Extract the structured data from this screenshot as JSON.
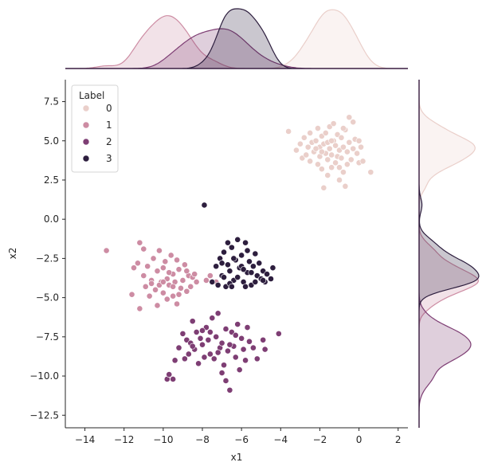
{
  "chart_data": {
    "type": "scatter",
    "subtype": "jointplot",
    "xlabel": "x1",
    "ylabel": "x2",
    "xlim": [
      -15,
      2.5
    ],
    "ylim": [
      -13.3,
      8.9
    ],
    "xticks": [
      "−14",
      "−12",
      "−10",
      "−8",
      "−6",
      "−4",
      "−2",
      "0",
      "2"
    ],
    "yticks": [
      "−12.5",
      "−10.0",
      "−7.5",
      "−5.0",
      "−2.5",
      "0.0",
      "2.5",
      "5.0",
      "7.5"
    ],
    "grid": false,
    "legend": {
      "title": "Label",
      "position": "top-left",
      "entries": [
        "0",
        "1",
        "2",
        "3"
      ]
    },
    "marginal": "kde",
    "series": [
      {
        "name": "0",
        "color": "#eacfca",
        "points": [
          [
            -3.6,
            5.6
          ],
          [
            -3.2,
            4.4
          ],
          [
            -3.0,
            4.8
          ],
          [
            -2.9,
            3.9
          ],
          [
            -2.8,
            5.2
          ],
          [
            -2.7,
            4.1
          ],
          [
            -2.6,
            4.6
          ],
          [
            -2.5,
            5.5
          ],
          [
            -2.5,
            3.7
          ],
          [
            -2.4,
            4.9
          ],
          [
            -2.3,
            4.3
          ],
          [
            -2.2,
            5.0
          ],
          [
            -2.1,
            3.5
          ],
          [
            -2.1,
            5.8
          ],
          [
            -2.0,
            4.6
          ],
          [
            -2.0,
            4.0
          ],
          [
            -1.9,
            5.3
          ],
          [
            -1.9,
            3.2
          ],
          [
            -1.8,
            2.0
          ],
          [
            -1.8,
            4.8
          ],
          [
            -1.7,
            4.2
          ],
          [
            -1.7,
            5.5
          ],
          [
            -1.6,
            3.8
          ],
          [
            -1.6,
            2.8
          ],
          [
            -1.5,
            4.5
          ],
          [
            -1.5,
            5.9
          ],
          [
            -1.4,
            4.1
          ],
          [
            -1.4,
            3.3
          ],
          [
            -1.3,
            5.0
          ],
          [
            -1.3,
            6.1
          ],
          [
            -1.2,
            4.7
          ],
          [
            -1.2,
            3.6
          ],
          [
            -1.1,
            5.4
          ],
          [
            -1.1,
            4.0
          ],
          [
            -1.0,
            4.4
          ],
          [
            -1.0,
            2.5
          ],
          [
            -0.9,
            5.2
          ],
          [
            -0.9,
            3.9
          ],
          [
            -0.8,
            4.6
          ],
          [
            -0.8,
            3.0
          ],
          [
            -0.7,
            5.7
          ],
          [
            -0.7,
            2.1
          ],
          [
            -0.6,
            4.3
          ],
          [
            -0.6,
            3.5
          ],
          [
            -0.5,
            4.9
          ],
          [
            -0.5,
            6.5
          ],
          [
            -0.4,
            3.8
          ],
          [
            -0.3,
            4.5
          ],
          [
            -0.3,
            6.2
          ],
          [
            -0.2,
            5.1
          ],
          [
            -0.1,
            4.2
          ],
          [
            0.0,
            3.6
          ],
          [
            0.0,
            5.0
          ],
          [
            0.1,
            4.6
          ],
          [
            0.2,
            3.7
          ],
          [
            -1.6,
            4.9
          ],
          [
            -2.2,
            4.5
          ],
          [
            -1.0,
            3.3
          ],
          [
            -0.8,
            5.8
          ],
          [
            0.6,
            3.0
          ],
          [
            -1.9,
            4.3
          ],
          [
            -1.4,
            5.0
          ]
        ]
      },
      {
        "name": "1",
        "color": "#cd8ca3",
        "points": [
          [
            -12.9,
            -2.0
          ],
          [
            -11.6,
            -4.8
          ],
          [
            -11.5,
            -3.1
          ],
          [
            -11.3,
            -2.8
          ],
          [
            -11.2,
            -1.5
          ],
          [
            -11.2,
            -5.7
          ],
          [
            -11.0,
            -3.6
          ],
          [
            -11.0,
            -1.9
          ],
          [
            -10.9,
            -4.3
          ],
          [
            -10.8,
            -3.0
          ],
          [
            -10.7,
            -4.9
          ],
          [
            -10.6,
            -3.9
          ],
          [
            -10.5,
            -2.5
          ],
          [
            -10.4,
            -4.5
          ],
          [
            -10.3,
            -3.3
          ],
          [
            -10.3,
            -5.5
          ],
          [
            -10.2,
            -2.0
          ],
          [
            -10.1,
            -4.0
          ],
          [
            -10.0,
            -3.1
          ],
          [
            -10.0,
            -4.7
          ],
          [
            -9.9,
            -2.7
          ],
          [
            -9.8,
            -3.8
          ],
          [
            -9.8,
            -5.1
          ],
          [
            -9.7,
            -4.2
          ],
          [
            -9.6,
            -2.3
          ],
          [
            -9.5,
            -3.5
          ],
          [
            -9.5,
            -4.9
          ],
          [
            -9.4,
            -4.0
          ],
          [
            -9.3,
            -2.6
          ],
          [
            -9.3,
            -5.4
          ],
          [
            -9.2,
            -3.2
          ],
          [
            -9.1,
            -4.4
          ],
          [
            -9.0,
            -3.9
          ],
          [
            -8.9,
            -2.9
          ],
          [
            -8.8,
            -4.6
          ],
          [
            -8.7,
            -3.6
          ],
          [
            -8.6,
            -4.3
          ],
          [
            -8.5,
            -3.7
          ],
          [
            -8.4,
            -3.5
          ],
          [
            -8.3,
            -4.0
          ],
          [
            -7.8,
            -3.9
          ],
          [
            -7.6,
            -3.6
          ],
          [
            -7.3,
            -4.0
          ],
          [
            -10.2,
            -4.2
          ],
          [
            -9.7,
            -3.4
          ],
          [
            -10.6,
            -4.1
          ],
          [
            -9.2,
            -4.8
          ],
          [
            -8.8,
            -3.3
          ],
          [
            -10.0,
            -4.0
          ],
          [
            -9.5,
            -4.3
          ]
        ]
      },
      {
        "name": "2",
        "color": "#7e3e74",
        "points": [
          [
            -9.8,
            -10.2
          ],
          [
            -9.7,
            -9.9
          ],
          [
            -9.5,
            -10.2
          ],
          [
            -9.4,
            -9.0
          ],
          [
            -9.2,
            -8.2
          ],
          [
            -9.0,
            -7.3
          ],
          [
            -8.9,
            -8.9
          ],
          [
            -8.8,
            -7.7
          ],
          [
            -8.7,
            -8.6
          ],
          [
            -8.6,
            -7.9
          ],
          [
            -8.5,
            -6.5
          ],
          [
            -8.4,
            -8.3
          ],
          [
            -8.3,
            -7.2
          ],
          [
            -8.2,
            -9.2
          ],
          [
            -8.1,
            -7.6
          ],
          [
            -8.0,
            -8.0
          ],
          [
            -7.9,
            -8.8
          ],
          [
            -7.8,
            -6.9
          ],
          [
            -7.7,
            -7.7
          ],
          [
            -7.6,
            -8.6
          ],
          [
            -7.5,
            -6.3
          ],
          [
            -7.4,
            -8.9
          ],
          [
            -7.3,
            -7.5
          ],
          [
            -7.2,
            -6.0
          ],
          [
            -7.1,
            -8.2
          ],
          [
            -7.0,
            -7.9
          ],
          [
            -6.9,
            -9.3
          ],
          [
            -6.8,
            -7.0
          ],
          [
            -6.7,
            -8.4
          ],
          [
            -6.6,
            -10.9
          ],
          [
            -6.5,
            -7.2
          ],
          [
            -6.4,
            -8.1
          ],
          [
            -6.3,
            -8.8
          ],
          [
            -6.2,
            -6.7
          ],
          [
            -6.1,
            -9.6
          ],
          [
            -6.0,
            -7.6
          ],
          [
            -5.9,
            -8.3
          ],
          [
            -5.8,
            -9.0
          ],
          [
            -5.7,
            -6.9
          ],
          [
            -5.6,
            -7.8
          ],
          [
            -5.4,
            -8.2
          ],
          [
            -5.2,
            -8.9
          ],
          [
            -4.9,
            -7.7
          ],
          [
            -4.8,
            -8.3
          ],
          [
            -4.1,
            -7.3
          ],
          [
            -8.0,
            -7.1
          ],
          [
            -7.2,
            -8.5
          ],
          [
            -6.6,
            -8.0
          ],
          [
            -7.6,
            -7.2
          ],
          [
            -6.3,
            -7.4
          ],
          [
            -8.5,
            -8.1
          ],
          [
            -7.0,
            -9.8
          ],
          [
            -6.8,
            -10.3
          ]
        ]
      },
      {
        "name": "3",
        "color": "#2d1e3e",
        "points": [
          [
            -7.9,
            0.9
          ],
          [
            -7.5,
            -4.0
          ],
          [
            -7.3,
            -3.0
          ],
          [
            -7.2,
            -4.2
          ],
          [
            -7.1,
            -2.5
          ],
          [
            -7.0,
            -3.6
          ],
          [
            -6.9,
            -2.1
          ],
          [
            -6.8,
            -4.3
          ],
          [
            -6.7,
            -2.9
          ],
          [
            -6.6,
            -3.3
          ],
          [
            -6.5,
            -1.8
          ],
          [
            -6.4,
            -3.9
          ],
          [
            -6.3,
            -2.6
          ],
          [
            -6.2,
            -1.3
          ],
          [
            -6.1,
            -3.1
          ],
          [
            -6.0,
            -2.3
          ],
          [
            -5.9,
            -4.0
          ],
          [
            -5.8,
            -1.5
          ],
          [
            -5.7,
            -3.4
          ],
          [
            -5.6,
            -2.7
          ],
          [
            -5.5,
            -4.2
          ],
          [
            -5.4,
            -3.0
          ],
          [
            -5.3,
            -2.2
          ],
          [
            -5.2,
            -3.6
          ],
          [
            -5.1,
            -2.8
          ],
          [
            -5.0,
            -3.8
          ],
          [
            -4.9,
            -3.3
          ],
          [
            -4.8,
            -4.0
          ],
          [
            -4.7,
            -3.5
          ],
          [
            -4.5,
            -3.8
          ],
          [
            -4.4,
            -3.1
          ],
          [
            -6.6,
            -4.1
          ],
          [
            -5.8,
            -4.3
          ],
          [
            -6.2,
            -3.7
          ],
          [
            -7.0,
            -2.8
          ],
          [
            -5.5,
            -3.4
          ],
          [
            -6.9,
            -3.7
          ],
          [
            -6.4,
            -2.5
          ],
          [
            -5.3,
            -4.0
          ],
          [
            -4.9,
            -3.9
          ],
          [
            -6.7,
            -1.5
          ],
          [
            -6.0,
            -3.0
          ],
          [
            -5.7,
            -2.0
          ],
          [
            -5.9,
            -3.2
          ],
          [
            -6.5,
            -4.3
          ]
        ]
      }
    ]
  }
}
